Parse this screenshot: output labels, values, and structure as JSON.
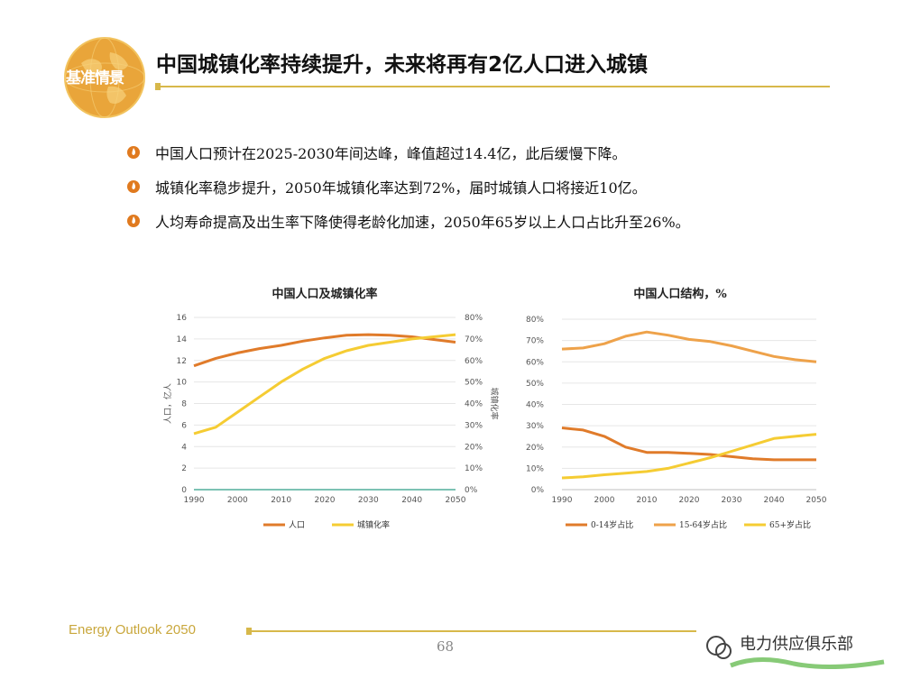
{
  "header": {
    "logo_text": "基准情景",
    "title": "中国城镇化率持续提升，未来将再有2亿人口进入城镇"
  },
  "bullets": [
    "中国人口预计在2025-2030年间达峰，峰值超过14.4亿，此后缓慢下降。",
    "城镇化率稳步提升，2050年城镇化率达到72%，届时城镇人口将接近10亿。",
    "人均寿命提高及出生率下降使得老龄化加速，2050年65岁以上人口占比升至26%。"
  ],
  "colors": {
    "accent_gold": "#d7b84a",
    "bullet_orange": "#e07a1f",
    "population": "#e07b2a",
    "urbanization": "#f5cc33",
    "age_0_14": "#e07b2a",
    "age_15_64": "#eea24a",
    "age_65_plus": "#f5cc33",
    "baseline": "#2e9e86"
  },
  "chart_data": [
    {
      "type": "line",
      "title": "中国人口及城镇化率",
      "ylabel": "人口，亿人",
      "y2label": "城镇化率",
      "xticks": [
        "1990",
        "2000",
        "2010",
        "2020",
        "2030",
        "2040",
        "2050"
      ],
      "yticks": [
        "0",
        "2",
        "4",
        "6",
        "8",
        "10",
        "12",
        "14",
        "16"
      ],
      "y2ticks": [
        "0%",
        "10%",
        "20%",
        "30%",
        "40%",
        "50%",
        "60%",
        "70%",
        "80%"
      ],
      "xlim": [
        1990,
        2050
      ],
      "ylim": [
        0,
        16
      ],
      "y2lim": [
        0,
        80
      ],
      "grid": true,
      "legend_position": "bottom",
      "series": [
        {
          "name": "人口",
          "axis": "left",
          "x": [
            1990,
            1995,
            2000,
            2005,
            2010,
            2015,
            2020,
            2025,
            2030,
            2035,
            2040,
            2045,
            2050
          ],
          "y": [
            11.5,
            12.2,
            12.7,
            13.1,
            13.4,
            13.8,
            14.1,
            14.35,
            14.4,
            14.35,
            14.2,
            13.95,
            13.7
          ]
        },
        {
          "name": "城镇化率",
          "axis": "right",
          "x": [
            1990,
            1995,
            2000,
            2005,
            2010,
            2015,
            2020,
            2025,
            2030,
            2035,
            2040,
            2045,
            2050
          ],
          "y": [
            26,
            29,
            36,
            43,
            50,
            56,
            61,
            64.5,
            67,
            68.5,
            70,
            71,
            72
          ]
        }
      ]
    },
    {
      "type": "line",
      "title": "中国人口结构，%",
      "xticks": [
        "1990",
        "2000",
        "2010",
        "2020",
        "2030",
        "2040",
        "2050"
      ],
      "yticks": [
        "0%",
        "10%",
        "20%",
        "30%",
        "40%",
        "50%",
        "60%",
        "70%",
        "80%"
      ],
      "xlim": [
        1990,
        2050
      ],
      "ylim": [
        0,
        80
      ],
      "grid": true,
      "legend_position": "bottom",
      "series": [
        {
          "name": "0-14岁占比",
          "x": [
            1990,
            1995,
            2000,
            2005,
            2010,
            2015,
            2020,
            2025,
            2030,
            2035,
            2040,
            2045,
            2050
          ],
          "y": [
            29,
            28,
            25,
            20,
            17.5,
            17.5,
            17,
            16.5,
            15.5,
            14.5,
            14,
            14,
            14
          ]
        },
        {
          "name": "15-64岁占比",
          "x": [
            1990,
            1995,
            2000,
            2005,
            2010,
            2015,
            2020,
            2025,
            2030,
            2035,
            2040,
            2045,
            2050
          ],
          "y": [
            66,
            66.5,
            68.5,
            72,
            74,
            72.5,
            70.5,
            69.5,
            67.5,
            65,
            62.5,
            61,
            60
          ]
        },
        {
          "name": "65+岁占比",
          "x": [
            1990,
            1995,
            2000,
            2005,
            2010,
            2015,
            2020,
            2025,
            2030,
            2035,
            2040,
            2045,
            2050
          ],
          "y": [
            5.5,
            6,
            7,
            7.7,
            8.5,
            10,
            12.5,
            15,
            18,
            21,
            24,
            25,
            26
          ]
        }
      ]
    }
  ],
  "footer": {
    "brand": "Energy Outlook 2050",
    "page_number": "68",
    "watermark_text": "电力供应俱乐部"
  }
}
